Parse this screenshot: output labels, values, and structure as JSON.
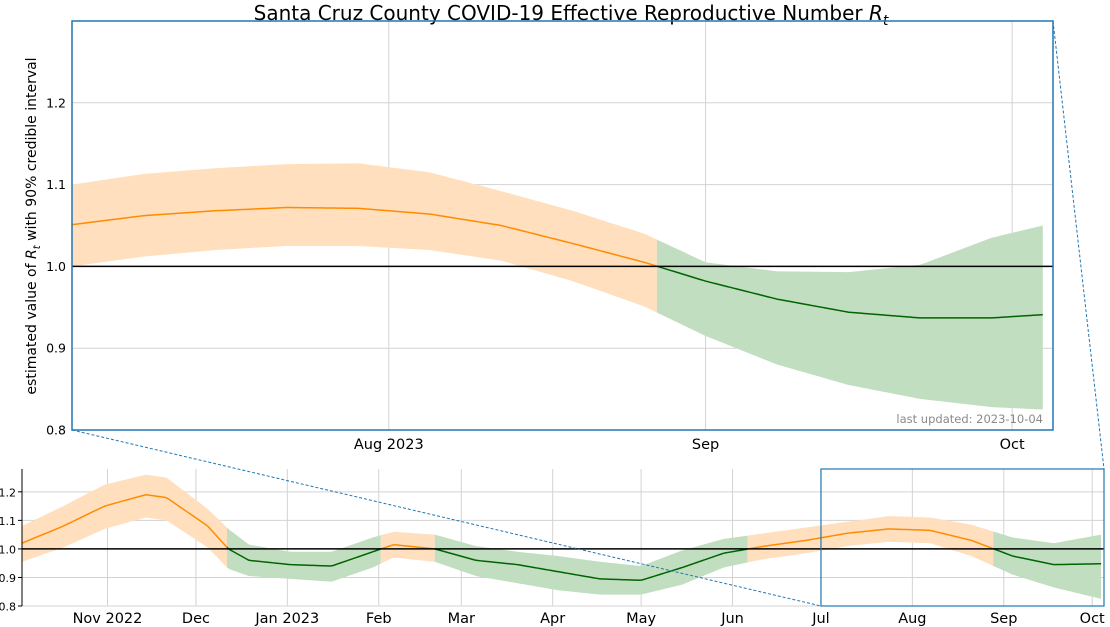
{
  "chart_data": [
    {
      "panel": "main",
      "type": "line",
      "title": "Santa Cruz County COVID-19 Effective Reproductive Number",
      "title_symbol": "R",
      "title_subscript": "t",
      "ylabel_pre": "estimated value of ",
      "ylabel_symbol": "R",
      "ylabel_subscript": "t",
      "ylabel_post": " with 90% credible interval",
      "annotation": "last updated: 2023-10-04",
      "xlim": [
        "2023-07-01",
        "2023-10-05"
      ],
      "ylim": [
        0.8,
        1.3
      ],
      "yticks": [
        0.8,
        0.9,
        1.0,
        1.1,
        1.2
      ],
      "ytick_labels": [
        "0.8",
        "0.9",
        "1.0",
        "1.1",
        "1.2"
      ],
      "xticks": [
        "2023-08-01",
        "2023-09-01",
        "2023-10-01"
      ],
      "xtick_labels": [
        "Aug 2023",
        "Sep",
        "Oct"
      ],
      "reference_line": 1.0,
      "grid": true,
      "colors": {
        "above": "#ff8c00",
        "above_band": "#ffdfbd",
        "below": "#006400",
        "below_band": "#c1dec1",
        "border": "#1f77b4"
      },
      "x": [
        "2023-07-01",
        "2023-07-08",
        "2023-07-15",
        "2023-07-22",
        "2023-07-29",
        "2023-08-05",
        "2023-08-12",
        "2023-08-19",
        "2023-08-26",
        "2023-09-01",
        "2023-09-08",
        "2023-09-15",
        "2023-09-22",
        "2023-09-29",
        "2023-10-04"
      ],
      "rt": [
        1.051,
        1.062,
        1.068,
        1.072,
        1.071,
        1.064,
        1.05,
        1.028,
        1.005,
        0.982,
        0.96,
        0.944,
        0.937,
        0.937,
        0.941
      ],
      "lower": [
        1.0,
        1.012,
        1.02,
        1.025,
        1.025,
        1.02,
        1.007,
        0.982,
        0.951,
        0.915,
        0.88,
        0.855,
        0.838,
        0.828,
        0.825
      ],
      "upper": [
        1.1,
        1.113,
        1.12,
        1.125,
        1.126,
        1.115,
        1.092,
        1.068,
        1.04,
        1.005,
        0.994,
        0.993,
        1.002,
        1.035,
        1.05
      ]
    },
    {
      "panel": "overview",
      "type": "line",
      "xlim": [
        "2022-10-03",
        "2023-10-05"
      ],
      "ylim": [
        0.8,
        1.28
      ],
      "yticks": [
        0.8,
        0.9,
        1.0,
        1.1,
        1.2
      ],
      "ytick_labels": [
        "0.8",
        "0.9",
        "1.0",
        "1.1",
        "1.2"
      ],
      "xticks": [
        "2022-11-01",
        "2022-12-01",
        "2023-01-01",
        "2023-02-01",
        "2023-03-01",
        "2023-04-01",
        "2023-05-01",
        "2023-06-01",
        "2023-07-01",
        "2023-08-01",
        "2023-09-01",
        "2023-10-01"
      ],
      "xtick_labels": [
        "Nov 2022",
        "Dec",
        "Jan 2023",
        "Feb",
        "Mar",
        "Apr",
        "May",
        "Jun",
        "Jul",
        "Aug",
        "Sep",
        "Oct"
      ],
      "reference_line": 1.0,
      "grid": true,
      "zoom_window": [
        "2023-07-01",
        "2023-10-05"
      ],
      "x": [
        "2022-10-03",
        "2022-10-17",
        "2022-10-31",
        "2022-11-14",
        "2022-11-21",
        "2022-12-05",
        "2022-12-12",
        "2022-12-19",
        "2023-01-02",
        "2023-01-16",
        "2023-01-30",
        "2023-02-06",
        "2023-02-20",
        "2023-03-06",
        "2023-03-20",
        "2023-04-03",
        "2023-04-17",
        "2023-05-01",
        "2023-05-15",
        "2023-05-29",
        "2023-06-12",
        "2023-06-26",
        "2023-07-10",
        "2023-07-24",
        "2023-08-07",
        "2023-08-21",
        "2023-09-04",
        "2023-09-18",
        "2023-10-04"
      ],
      "rt": [
        1.02,
        1.08,
        1.15,
        1.19,
        1.18,
        1.08,
        1.0,
        0.96,
        0.945,
        0.94,
        0.99,
        1.015,
        1.0,
        0.96,
        0.945,
        0.92,
        0.895,
        0.89,
        0.935,
        0.985,
        1.01,
        1.03,
        1.055,
        1.07,
        1.065,
        1.03,
        0.975,
        0.945,
        0.948
      ],
      "lower": [
        0.955,
        1.005,
        1.07,
        1.11,
        1.1,
        1.005,
        0.93,
        0.905,
        0.895,
        0.885,
        0.935,
        0.97,
        0.955,
        0.905,
        0.88,
        0.855,
        0.84,
        0.84,
        0.875,
        0.935,
        0.965,
        0.985,
        1.01,
        1.025,
        1.02,
        0.975,
        0.91,
        0.865,
        0.825
      ],
      "upper": [
        1.08,
        1.15,
        1.225,
        1.26,
        1.25,
        1.14,
        1.07,
        1.015,
        0.99,
        0.99,
        1.04,
        1.06,
        1.05,
        1.01,
        0.99,
        0.975,
        0.955,
        0.94,
        0.995,
        1.035,
        1.055,
        1.075,
        1.095,
        1.115,
        1.11,
        1.085,
        1.04,
        1.02,
        1.05
      ]
    }
  ]
}
